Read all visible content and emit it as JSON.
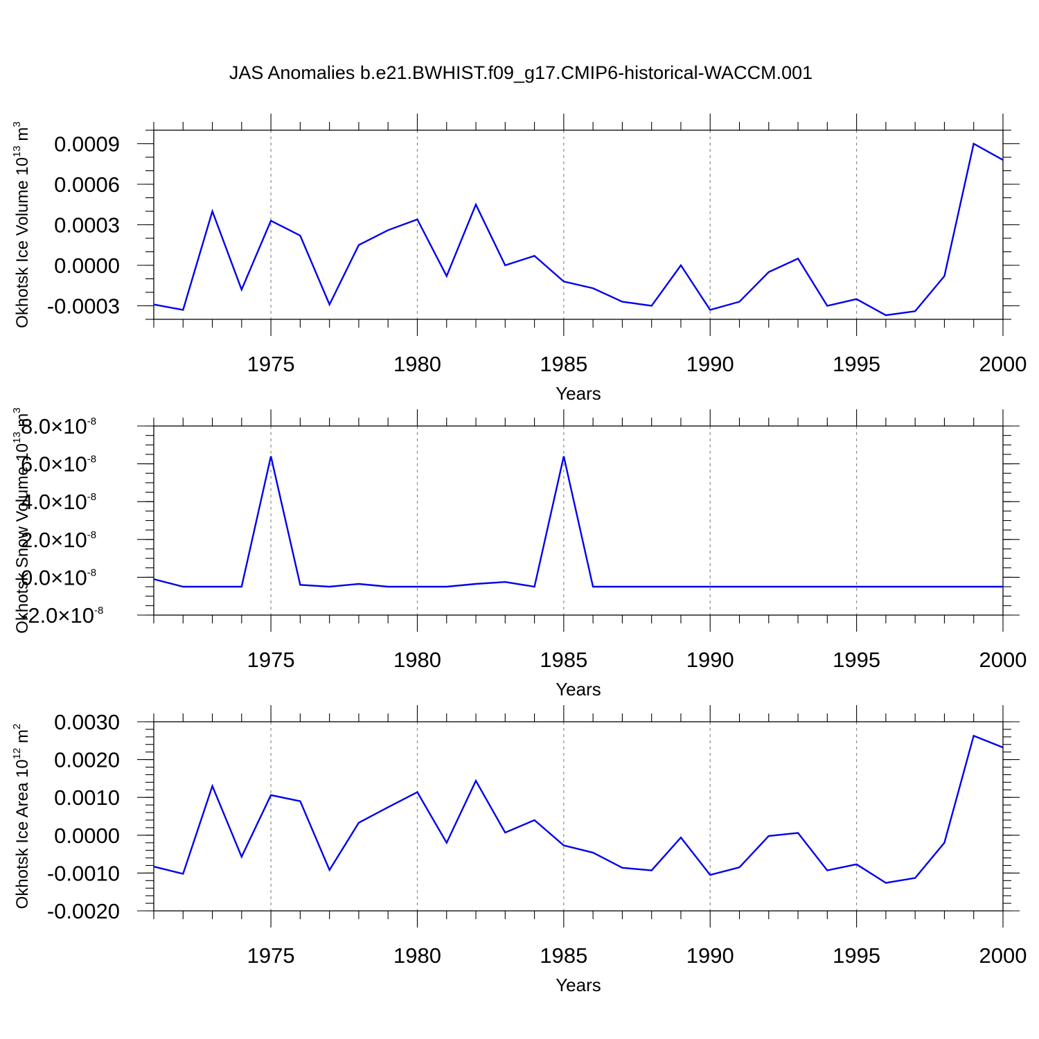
{
  "title": "JAS Anomalies b.e21.BWHIST.f09_g17.CMIP6-historical-WACCM.001",
  "chart_data": [
    {
      "type": "line",
      "name": "ice-volume",
      "ylabel_parts": [
        "Okhotsk Ice Volume 10",
        "13",
        " m",
        "3"
      ],
      "xlabel": "Years",
      "xlim": [
        1971,
        2000
      ],
      "ylim": [
        -0.0004,
        0.001
      ],
      "x_ticks": [
        1975,
        1980,
        1985,
        1990,
        1995,
        2000
      ],
      "x_tick_labels": [
        "1975",
        "1980",
        "1985",
        "1990",
        "1995",
        "2000"
      ],
      "y_ticks": [
        -0.0003,
        0.0,
        0.0003,
        0.0006,
        0.0009
      ],
      "y_tick_labels": [
        "-0.0003",
        "0.0000",
        "0.0003",
        "0.0006",
        "0.0009"
      ],
      "y_tick_exponent": "",
      "y_minor_step": 0.0001,
      "grid": true,
      "color": "#0000ee",
      "x": [
        1971,
        1972,
        1973,
        1974,
        1975,
        1976,
        1977,
        1978,
        1979,
        1980,
        1981,
        1982,
        1983,
        1984,
        1985,
        1986,
        1987,
        1988,
        1989,
        1990,
        1991,
        1992,
        1993,
        1994,
        1995,
        1996,
        1997,
        1998,
        1999,
        2000
      ],
      "y": [
        -0.00029,
        -0.00033,
        0.0004,
        -0.00018,
        0.00033,
        0.00022,
        -0.00029,
        0.00015,
        0.00026,
        0.00034,
        -8e-05,
        0.00045,
        0.0,
        7e-05,
        -0.00012,
        -0.00017,
        -0.00027,
        -0.0003,
        0.0,
        -0.00033,
        -0.00027,
        -5e-05,
        5e-05,
        -0.0003,
        -0.00025,
        -0.00037,
        -0.00034,
        -8e-05,
        0.0009,
        0.00078
      ]
    },
    {
      "type": "line",
      "name": "snow-volume",
      "ylabel_parts": [
        "Okhotsk Snow Volume 10",
        "13",
        " m",
        "3"
      ],
      "xlabel": "Years",
      "xlim": [
        1971,
        2000
      ],
      "ylim": [
        -2e-08,
        8e-08
      ],
      "x_ticks": [
        1975,
        1980,
        1985,
        1990,
        1995,
        2000
      ],
      "x_tick_labels": [
        "1975",
        "1980",
        "1985",
        "1990",
        "1995",
        "2000"
      ],
      "y_ticks": [
        -2e-08,
        0,
        2e-08,
        4e-08,
        6e-08,
        8e-08
      ],
      "y_tick_labels": [
        "-2.0",
        "0.0",
        "2.0",
        "4.0",
        "6.0",
        "8.0"
      ],
      "y_tick_exponent": "-8",
      "y_minor_step": 5e-09,
      "grid": true,
      "color": "#0000ee",
      "x": [
        1971,
        1972,
        1973,
        1974,
        1975,
        1976,
        1977,
        1978,
        1979,
        1980,
        1981,
        1982,
        1983,
        1984,
        1985,
        1986,
        1987,
        1988,
        1989,
        1990,
        1991,
        1992,
        1993,
        1994,
        1995,
        1996,
        1997,
        1998,
        1999,
        2000
      ],
      "y": [
        -1e-09,
        -5e-09,
        -5e-09,
        -5e-09,
        6.4e-08,
        -4e-09,
        -5e-09,
        -3.5e-09,
        -5e-09,
        -5e-09,
        -5e-09,
        -3.5e-09,
        -2.5e-09,
        -5e-09,
        6.4e-08,
        -5e-09,
        -5e-09,
        -5e-09,
        -5e-09,
        -5e-09,
        -5e-09,
        -5e-09,
        -5e-09,
        -5e-09,
        -5e-09,
        -5e-09,
        -5e-09,
        -5e-09,
        -5e-09,
        -5e-09
      ]
    },
    {
      "type": "line",
      "name": "ice-area",
      "ylabel_parts": [
        "Okhotsk Ice Area 10",
        "12",
        " m",
        "2"
      ],
      "xlabel": "Years",
      "xlim": [
        1971,
        2000
      ],
      "ylim": [
        -0.002,
        0.003
      ],
      "x_ticks": [
        1975,
        1980,
        1985,
        1990,
        1995,
        2000
      ],
      "x_tick_labels": [
        "1975",
        "1980",
        "1985",
        "1990",
        "1995",
        "2000"
      ],
      "y_ticks": [
        -0.002,
        -0.001,
        0.0,
        0.001,
        0.002,
        0.003
      ],
      "y_tick_labels": [
        "-0.0020",
        "-0.0010",
        "0.0000",
        "0.0010",
        "0.0020",
        "0.0030"
      ],
      "y_tick_exponent": "",
      "y_minor_step": 0.0002,
      "grid": true,
      "color": "#0000ee",
      "x": [
        1971,
        1972,
        1973,
        1974,
        1975,
        1976,
        1977,
        1978,
        1979,
        1980,
        1981,
        1982,
        1983,
        1984,
        1985,
        1986,
        1987,
        1988,
        1989,
        1990,
        1991,
        1992,
        1993,
        1994,
        1995,
        1996,
        1997,
        1998,
        1999,
        2000
      ],
      "y": [
        -0.00083,
        -0.00102,
        0.0013,
        -0.00057,
        0.00106,
        0.0009,
        -0.00092,
        0.00033,
        0.00074,
        0.00114,
        -0.0002,
        0.00144,
        7e-05,
        0.0004,
        -0.00027,
        -0.00046,
        -0.00086,
        -0.00093,
        -6e-05,
        -0.00105,
        -0.00085,
        -2e-05,
        6e-05,
        -0.00093,
        -0.00077,
        -0.00126,
        -0.00113,
        -0.0002,
        0.00263,
        0.00232
      ]
    }
  ]
}
